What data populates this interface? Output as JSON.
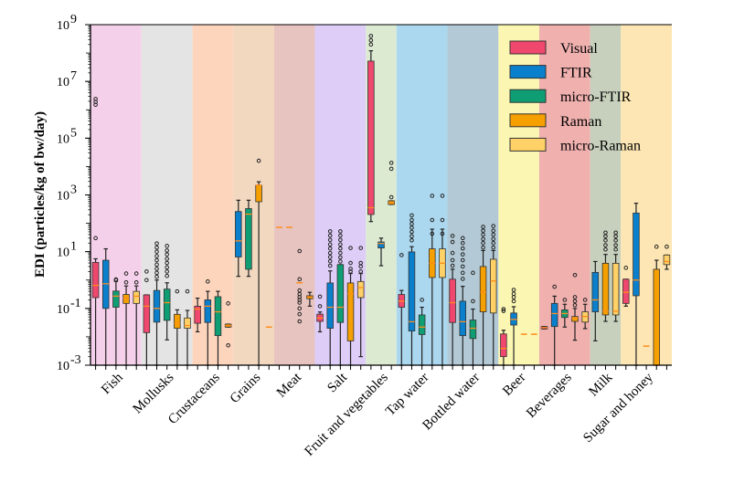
{
  "chart_data": {
    "type": "box",
    "title": "",
    "xlabel": "",
    "ylabel": "EDI (particles/kg of bw/day)",
    "yscale": "log",
    "ylim": [
      0.001,
      1000000000
    ],
    "yticks": [
      {
        "base": "10",
        "exp": "9",
        "value": 1000000000.0
      },
      {
        "base": "10",
        "exp": "7",
        "value": 10000000.0
      },
      {
        "base": "10",
        "exp": "5",
        "value": 100000.0
      },
      {
        "base": "10",
        "exp": "3",
        "value": 1000.0
      },
      {
        "base": "10",
        "exp": "1",
        "value": 10.0
      },
      {
        "base": "10",
        "exp": "-1",
        "value": 0.1
      },
      {
        "base": "10",
        "exp": "-3",
        "value": 0.001
      }
    ],
    "grid": false,
    "legend_position": "top-right",
    "methods": [
      {
        "name": "Visual",
        "color": "#f0476e"
      },
      {
        "name": "FTIR",
        "color": "#0a7fcc"
      },
      {
        "name": "micro-FTIR",
        "color": "#0f9e73"
      },
      {
        "name": "Raman",
        "color": "#f59f00"
      },
      {
        "name": "micro-Raman",
        "color": "#ffd166"
      }
    ],
    "median_color": "#ff8c1a",
    "categories": [
      {
        "name": "Fish",
        "band_color": "#f5d0ea",
        "boxes": [
          {
            "method": "Visual",
            "whislo": 0.001,
            "q1": 0.24,
            "med": 0.65,
            "q3": 4.2,
            "whishi": 5.6,
            "fliers": [
              30,
              2400000,
              1900000,
              1500000
            ]
          },
          {
            "method": "FTIR",
            "whislo": 0.001,
            "q1": 0.1,
            "med": 0.74,
            "q3": 5.0,
            "whishi": 12.6,
            "fliers": []
          },
          {
            "method": "micro-FTIR",
            "whislo": 0.001,
            "q1": 0.11,
            "med": 0.27,
            "q3": 0.41,
            "whishi": 0.9,
            "fliers": [
              1.0,
              1.05
            ]
          },
          {
            "method": "Raman",
            "whislo": 0.001,
            "q1": 0.15,
            "med": 0.23,
            "q3": 0.31,
            "whishi": 0.62,
            "fliers": [
              1.7,
              0.83
            ]
          },
          {
            "method": "micro-Raman",
            "whislo": 0.001,
            "q1": 0.15,
            "med": 0.27,
            "q3": 0.4,
            "whishi": 0.62,
            "fliers": [
              1.7,
              0.83
            ]
          }
        ]
      },
      {
        "name": "Mollusks",
        "band_color": "#e4e4e4",
        "boxes": [
          {
            "method": "Visual",
            "whislo": 0.001,
            "q1": 0.014,
            "med": 0.12,
            "q3": 0.3,
            "whishi": 0.3,
            "fliers": [
              2.0,
              1.0
            ]
          },
          {
            "method": "FTIR",
            "whislo": 0.001,
            "q1": 0.033,
            "med": 0.1,
            "q3": 0.43,
            "whishi": 1.0,
            "fliers": [
              19.5,
              14,
              10,
              7,
              5,
              3.5,
              2.5,
              1.8,
              1.3
            ]
          },
          {
            "method": "micro-FTIR",
            "whislo": 0.0078,
            "q1": 0.038,
            "med": 0.16,
            "q3": 0.48,
            "whishi": 0.8,
            "fliers": [
              16,
              11,
              8,
              5.6,
              4,
              2.8,
              2,
              1.4
            ]
          },
          {
            "method": "Raman",
            "whislo": 0.001,
            "q1": 0.02,
            "med": 0.03,
            "q3": 0.062,
            "whishi": 0.089,
            "fliers": [
              0.4
            ]
          },
          {
            "method": "micro-Raman",
            "whislo": 0.001,
            "q1": 0.02,
            "med": 0.025,
            "q3": 0.046,
            "whishi": 0.085,
            "fliers": [
              0.4
            ]
          }
        ]
      },
      {
        "name": "Crustaceans",
        "band_color": "#fdd5bd",
        "boxes": [
          {
            "method": "Visual",
            "whislo": 0.015,
            "q1": 0.03,
            "med": 0.095,
            "q3": 0.12,
            "whishi": 0.23,
            "fliers": []
          },
          {
            "method": "FTIR",
            "whislo": 0.001,
            "q1": 0.032,
            "med": 0.12,
            "q3": 0.2,
            "whishi": 0.4,
            "fliers": [
              0.89
            ]
          },
          {
            "method": "micro-FTIR",
            "whislo": 0.001,
            "q1": 0.011,
            "med": 0.076,
            "q3": 0.26,
            "whishi": 0.4,
            "fliers": []
          },
          {
            "method": "Raman",
            "whislo": 0.022,
            "q1": 0.022,
            "med": 0.025,
            "q3": 0.028,
            "whishi": 0.028,
            "fliers": [
              0.15,
              0.005
            ]
          }
        ]
      },
      {
        "name": "Grains",
        "band_color": "#f3d8c0",
        "boxes": [
          {
            "method": "FTIR",
            "whislo": 1.35,
            "q1": 6.5,
            "med": 24,
            "q3": 260,
            "whishi": 650,
            "fliers": []
          },
          {
            "method": "micro-FTIR",
            "whislo": 1.35,
            "q1": 2.4,
            "med": 210,
            "q3": 330,
            "whishi": 650,
            "fliers": []
          },
          {
            "method": "Raman",
            "whislo": 0.001,
            "q1": 575,
            "med": 2200,
            "q3": 2200,
            "whishi": 2900,
            "fliers": [
              16000
            ]
          },
          {
            "method": "micro-Raman",
            "value": 0.022
          }
        ]
      },
      {
        "name": "Meat",
        "band_color": "#e7c4bf",
        "boxes": [
          {
            "method": "Visual",
            "value": 72
          },
          {
            "method": "FTIR",
            "value": 72
          },
          {
            "method": "micro-FTIR",
            "value": 0.8,
            "fliers": [
              10.5,
              1.07,
              0.43,
              0.32,
              0.25,
              0.2,
              0.16,
              0.1,
              0.063,
              0.035
            ]
          },
          {
            "method": "Raman",
            "whislo": 0.12,
            "q1": 0.22,
            "med": 0.25,
            "q3": 0.28,
            "whishi": 0.37,
            "fliers": []
          }
        ]
      },
      {
        "name": "Salt",
        "band_color": "#ddcdf7",
        "boxes": [
          {
            "method": "Visual",
            "whislo": 0.015,
            "q1": 0.035,
            "med": 0.046,
            "q3": 0.063,
            "whishi": 0.075,
            "fliers": [
              0.26,
              0.12
            ]
          },
          {
            "method": "FTIR",
            "whislo": 0.001,
            "q1": 0.02,
            "med": 0.11,
            "q3": 0.79,
            "whishi": 2.1,
            "fliers": [
              52,
              37,
              26,
              18,
              13,
              9,
              6.5,
              4.6,
              3.2
            ]
          },
          {
            "method": "micro-FTIR",
            "whislo": 0.001,
            "q1": 0.032,
            "med": 0.11,
            "q3": 3.5,
            "whishi": 3.5,
            "fliers": [
              52,
              37,
              26,
              18,
              13,
              9,
              6.3,
              4.5
            ]
          },
          {
            "method": "Raman",
            "whislo": 0.001,
            "q1": 0.0072,
            "med": 0.33,
            "q3": 0.79,
            "whishi": 1.7,
            "fliers": [
              13.5,
              4,
              2.5,
              2.0
            ]
          },
          {
            "method": "micro-Raman",
            "whislo": 0.002,
            "q1": 0.24,
            "med": 0.54,
            "q3": 0.89,
            "whishi": 1.7,
            "fliers": [
              13.5,
              4,
              3,
              2
            ]
          }
        ]
      },
      {
        "name": "Fruit and vegetables",
        "band_color": "#dcead2",
        "boxes": [
          {
            "method": "Visual",
            "whislo": 115,
            "q1": 204,
            "med": 355,
            "q3": 52000000,
            "whishi": 120000000,
            "fliers": [
              400000000,
              280000000,
              200000000
            ]
          },
          {
            "method": "FTIR",
            "whislo": 3.2,
            "q1": 13.5,
            "med": 19.5,
            "q3": 22,
            "whishi": 30,
            "fliers": []
          },
          {
            "method": "Raman",
            "whislo": 460,
            "q1": 460,
            "med": 540,
            "q3": 620,
            "whishi": 620,
            "fliers": [
              13500,
              8300,
              830
            ]
          }
        ]
      },
      {
        "name": "Tap water",
        "band_color": "#acd8ef",
        "boxes": [
          {
            "method": "Visual",
            "whislo": 0.001,
            "q1": 0.11,
            "med": 0.18,
            "q3": 0.31,
            "whishi": 0.43,
            "fliers": [
              7.6
            ]
          },
          {
            "method": "FTIR",
            "whislo": 0.001,
            "q1": 0.016,
            "med": 0.034,
            "q3": 9.8,
            "whishi": 15,
            "fliers": [
              190,
              130,
              95,
              70,
              50,
              35,
              25
            ]
          },
          {
            "method": "micro-FTIR",
            "whislo": 0.001,
            "q1": 0.012,
            "med": 0.022,
            "q3": 0.059,
            "whishi": 0.11,
            "fliers": [
              0.2
            ]
          },
          {
            "method": "Raman",
            "whislo": 0.001,
            "q1": 1.23,
            "med": 3.9,
            "q3": 12.6,
            "whishi": 62,
            "fliers": [
              930,
              130,
              43
            ]
          },
          {
            "method": "micro-Raman",
            "whislo": 0.001,
            "q1": 1.23,
            "med": 3.9,
            "q3": 12.6,
            "whishi": 62,
            "fliers": [
              930,
              130,
              43
            ]
          }
        ]
      },
      {
        "name": "Bottled water",
        "band_color": "#b3cad6",
        "boxes": [
          {
            "method": "Visual",
            "whislo": 0.001,
            "q1": 0.032,
            "med": 0.16,
            "q3": 1.07,
            "whishi": 2.4,
            "fliers": [
              36,
              22,
              9,
              5,
              3.2
            ]
          },
          {
            "method": "FTIR",
            "whislo": 0.001,
            "q1": 0.011,
            "med": 0.034,
            "q3": 0.18,
            "whishi": 0.6,
            "fliers": [
              30,
              20,
              13,
              8,
              5,
              3,
              1.8,
              1.1
            ]
          },
          {
            "method": "micro-FTIR",
            "whislo": 0.001,
            "q1": 0.0087,
            "med": 0.02,
            "q3": 0.039,
            "whishi": 0.095,
            "fliers": [
              1.8,
              0.18
            ]
          },
          {
            "method": "Raman",
            "whislo": 0.001,
            "q1": 0.076,
            "med": 0.37,
            "q3": 3.0,
            "whishi": 11,
            "fliers": [
              75,
              55,
              40,
              28,
              20,
              14
            ]
          },
          {
            "method": "micro-Raman",
            "whislo": 0.001,
            "q1": 0.069,
            "med": 0.93,
            "q3": 5.4,
            "whishi": 11,
            "fliers": [
              80,
              55,
              40,
              28,
              20,
              14
            ]
          }
        ]
      },
      {
        "name": "Beer",
        "band_color": "#fbf7b3",
        "boxes": [
          {
            "method": "Visual",
            "whislo": 0.001,
            "q1": 0.002,
            "med": 0.0039,
            "q3": 0.0126,
            "whishi": 0.017,
            "fliers": [
              0.095,
              0.081
            ]
          },
          {
            "method": "FTIR",
            "whislo": 0.001,
            "q1": 0.026,
            "med": 0.041,
            "q3": 0.069,
            "whishi": 0.115,
            "fliers": [
              0.45,
              0.33,
              0.25,
              0.18
            ]
          },
          {
            "method": "Raman",
            "value": 0.0123
          },
          {
            "method": "micro-Raman",
            "value": 0.0123
          }
        ]
      },
      {
        "name": "Beverages",
        "band_color": "#efb0ae",
        "boxes": [
          {
            "method": "Visual",
            "whislo": 0.019,
            "q1": 0.019,
            "med": 0.021,
            "q3": 0.023,
            "whishi": 0.023,
            "fliers": []
          },
          {
            "method": "FTIR",
            "whislo": 0.001,
            "q1": 0.023,
            "med": 0.066,
            "q3": 0.15,
            "whishi": 0.27,
            "fliers": [
              0.58
            ]
          },
          {
            "method": "micro-FTIR",
            "whislo": 0.022,
            "q1": 0.048,
            "med": 0.066,
            "q3": 0.089,
            "whishi": 0.14,
            "fliers": [
              0.2
            ]
          },
          {
            "method": "Raman",
            "whislo": 0.0076,
            "q1": 0.035,
            "med": 0.046,
            "q3": 0.052,
            "whishi": 0.1,
            "fliers": [
              1.5,
              0.25,
              0.18,
              0.13
            ]
          },
          {
            "method": "micro-Raman",
            "whislo": 0.0195,
            "q1": 0.033,
            "med": 0.052,
            "q3": 0.076,
            "whishi": 0.14,
            "fliers": [
              0.2
            ]
          }
        ]
      },
      {
        "name": "Milk",
        "band_color": "#c7d0bd",
        "boxes": [
          {
            "method": "FTIR",
            "whislo": 0.0072,
            "q1": 0.076,
            "med": 0.2,
            "q3": 1.86,
            "whishi": 4.5,
            "fliers": []
          },
          {
            "method": "Raman",
            "whislo": 0.035,
            "q1": 0.059,
            "med": 0.08,
            "q3": 3.9,
            "whishi": 8,
            "fliers": [
              47,
              35,
              25,
              17,
              12
            ]
          },
          {
            "method": "micro-Raman",
            "whislo": 0.035,
            "q1": 0.059,
            "med": 0.08,
            "q3": 3.9,
            "whishi": 8,
            "fliers": [
              47,
              35,
              25,
              17,
              12
            ]
          }
        ]
      },
      {
        "name": "Sugar and honey",
        "band_color": "#fde6b3",
        "boxes": [
          {
            "method": "Visual",
            "whislo": 0.12,
            "q1": 0.15,
            "med": 0.37,
            "q3": 1.07,
            "whishi": 1.07,
            "fliers": [
              2.7
            ]
          },
          {
            "method": "FTIR",
            "whislo": 0.001,
            "q1": 0.28,
            "med": 1.0,
            "q3": 230,
            "whishi": 510,
            "fliers": []
          },
          {
            "method": "micro-FTIR",
            "value": 0.0047
          },
          {
            "method": "Raman",
            "whislo": 0.001,
            "q1": 0.001,
            "med": 0.001,
            "q3": 2.4,
            "whishi": 5,
            "fliers": [
              15
            ]
          },
          {
            "method": "micro-Raman",
            "whislo": 2.4,
            "q1": 3.5,
            "med": 4.5,
            "q3": 7.6,
            "whishi": 7.6,
            "fliers": [
              15
            ]
          }
        ]
      }
    ]
  }
}
